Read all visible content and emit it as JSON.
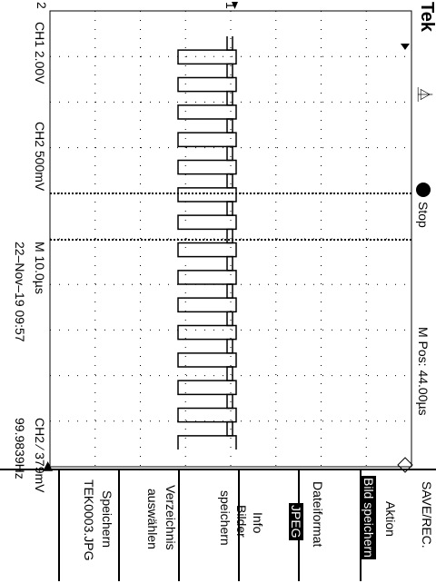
{
  "brand": "Tek",
  "run_state": "Stop",
  "trigger_icon_glyph": "⏅",
  "channels": {
    "ch1_scale": "CH1  2.00V",
    "ch2_scale": "CH2  500mV"
  },
  "timebase": "M 10.0µs",
  "position": "M Pos: 44.00µs",
  "datetime": "22–Nov–19 09:57",
  "trigger": {
    "label": "CH2",
    "slope_glyph": "∕",
    "level": "379mV"
  },
  "frequency": "99.9839Hz",
  "marker_1": "1",
  "marker_2": "2",
  "menu": {
    "title": "SAVE/REC.",
    "items": [
      {
        "line1": "Aktion",
        "line2": "Bild speichern"
      },
      {
        "line1": "Dateiformat",
        "line2": "JPEG"
      },
      {
        "line1": "Info",
        "line2": "Bilder",
        "line3": "speichern"
      },
      {
        "line1": "Verzeichnis",
        "line2": "auswählen"
      },
      {
        "line1": "Speichern",
        "line2": "TEK0003.JPG"
      }
    ]
  },
  "colors": {
    "foreground": "#000000",
    "background": "#ffffff"
  },
  "chart_data": {
    "type": "line",
    "series": [
      {
        "name": "CH1",
        "description_values": [
          1,
          0,
          1,
          0,
          1,
          0,
          1,
          0,
          1,
          0,
          1,
          0,
          1,
          0,
          1,
          0,
          1,
          0,
          1,
          0,
          1,
          0,
          1,
          0,
          1,
          0,
          1,
          0,
          1,
          0
        ]
      },
      {
        "name": "CH2",
        "description_values": [
          0,
          1,
          0,
          1,
          0,
          1,
          0,
          1,
          0,
          1,
          0,
          1,
          0,
          1,
          0,
          1,
          0,
          1,
          0,
          1,
          0,
          1,
          0,
          1,
          0,
          1,
          0,
          1,
          0,
          1
        ]
      }
    ],
    "grid": true
  }
}
